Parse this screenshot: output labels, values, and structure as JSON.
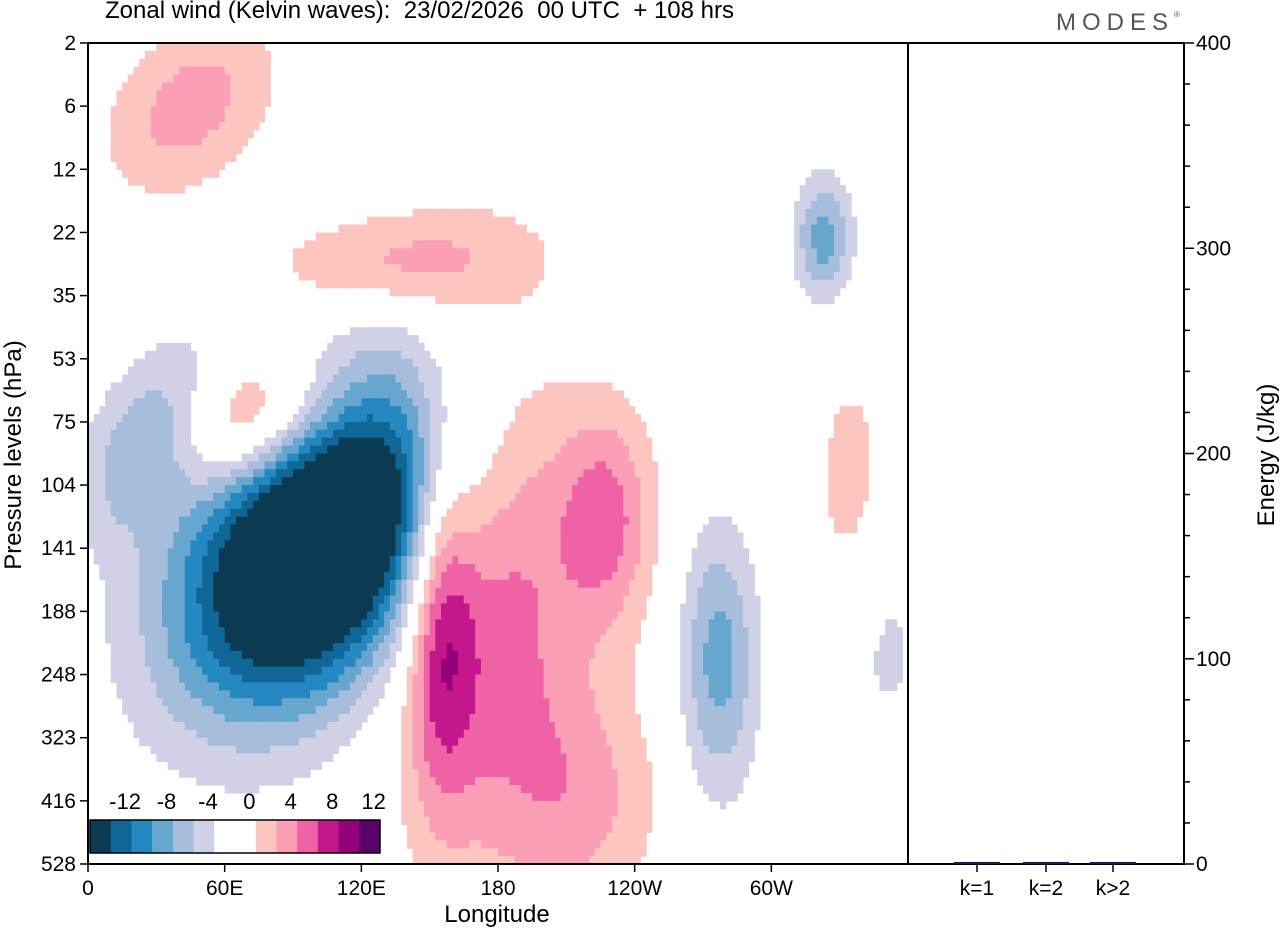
{
  "title": "Zonal wind (Kelvin waves):  23/02/2026  00 UTC  + 108 hrs",
  "brand": "MODES",
  "brand_mark": "®",
  "colors": {
    "neg": [
      "#0b3a53",
      "#0e6797",
      "#2588c0",
      "#66a6cf",
      "#a6bddb",
      "#d0d1e6"
    ],
    "pos": [
      "#fcc5c0",
      "#fa9fb5",
      "#f062a6",
      "#c5178c",
      "#93007a",
      "#5a006a"
    ],
    "zero": "#ffffff",
    "bar": "#1a1a4e"
  },
  "chart_data": [
    {
      "type": "heatmap",
      "title": "Zonal wind (Kelvin waves)",
      "xlabel": "Longitude",
      "ylabel": "Pressure levels (hPa)",
      "x_ticks": [
        "0",
        "60E",
        "120E",
        "180",
        "120W",
        "60W"
      ],
      "x_tick_values": [
        0,
        60,
        120,
        180,
        240,
        300
      ],
      "xlim": [
        0,
        360
      ],
      "y_ticks": [
        "2",
        "6",
        "12",
        "22",
        "35",
        "53",
        "75",
        "104",
        "141",
        "188",
        "248",
        "323",
        "416",
        "528"
      ],
      "colorbar_labels": [
        "-12",
        "-8",
        "-4",
        "0",
        "4",
        "8",
        "12"
      ],
      "colorbar_levels": [
        -14,
        -12,
        -10,
        -8,
        -6,
        -4,
        -2,
        2,
        4,
        6,
        8,
        10,
        12,
        14
      ],
      "features": [
        {
          "lon": 110,
          "lev": 7.5,
          "value": -13,
          "sx": 38,
          "sy": 2.0,
          "tilt": -0.9
        },
        {
          "lon": 95,
          "lev": 8.2,
          "value": -10,
          "sx": 40,
          "sy": 1.6,
          "tilt": -0.9
        },
        {
          "lon": 30,
          "lev": 6.2,
          "value": -8,
          "sx": 20,
          "sy": 1.0,
          "tilt": -0.9
        },
        {
          "lon": 70,
          "lev": 6.0,
          "value": 9,
          "sx": 30,
          "sy": 0.8,
          "tilt": -0.9
        },
        {
          "lon": 135,
          "lev": 3.5,
          "value": 5,
          "sx": 40,
          "sy": 0.6,
          "tilt": -0.9
        },
        {
          "lon": 175,
          "lev": 8.5,
          "value": 8,
          "sx": 30,
          "sy": 3.0,
          "tilt": 0
        },
        {
          "lon": 155,
          "lev": 9.0,
          "value": 7,
          "sx": 10,
          "sy": 2.0,
          "tilt": 0
        },
        {
          "lon": 228,
          "lev": 7.5,
          "value": 6,
          "sx": 15,
          "sy": 1.2,
          "tilt": 0
        },
        {
          "lon": 217,
          "lev": 12.0,
          "value": 4,
          "sx": 25,
          "sy": 1.3,
          "tilt": 0
        },
        {
          "lon": 277,
          "lev": 9.8,
          "value": -7,
          "sx": 12,
          "sy": 1.5,
          "tilt": 0
        },
        {
          "lon": 323,
          "lev": 3.1,
          "value": -7,
          "sx": 9,
          "sy": 0.7,
          "tilt": 0
        },
        {
          "lon": 45,
          "lev": 1.0,
          "value": 5,
          "sx": 25,
          "sy": 1.0,
          "tilt": -0.9
        },
        {
          "lon": 335,
          "lev": 7.0,
          "value": 3,
          "sx": 12,
          "sy": 1.5,
          "tilt": 0
        },
        {
          "lon": 350,
          "lev": 9.5,
          "value": -2.5,
          "sx": 14,
          "sy": 1.4,
          "tilt": 0
        }
      ]
    },
    {
      "type": "bar",
      "ylabel": "Energy (J/kg)",
      "categories": [
        "k=1",
        "k=2",
        "k>2"
      ],
      "values": [
        1,
        1,
        1
      ],
      "ylim": [
        0,
        400
      ],
      "y_ticks": [
        0,
        100,
        200,
        300,
        400
      ]
    }
  ]
}
